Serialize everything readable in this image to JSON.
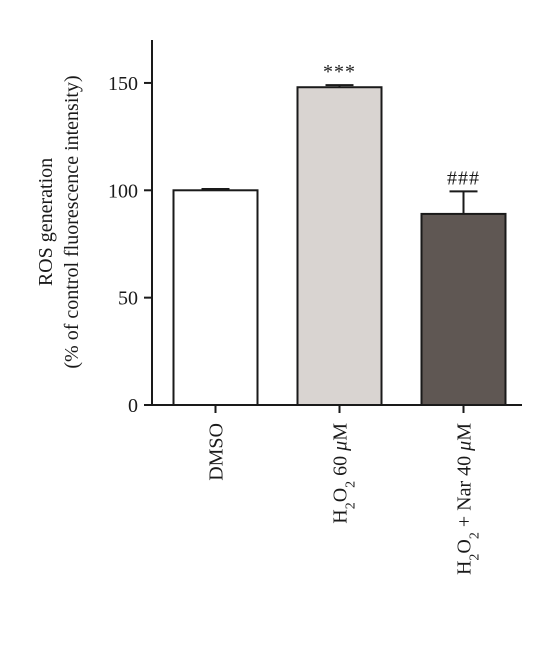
{
  "chart_data": {
    "type": "bar",
    "ylabel_lines": [
      "ROS generation",
      "(% of control fluorescence intensity)"
    ],
    "xlabel": "",
    "ylim": [
      0,
      170
    ],
    "yticks": [
      0,
      50,
      100,
      150
    ],
    "grid": false,
    "categories": [
      "DMSO",
      "H2O2 60 μM",
      "H2O2 + Nar 40 μM"
    ],
    "category_labels": [
      {
        "parts": [
          {
            "text": "DMSO"
          }
        ]
      },
      {
        "parts": [
          {
            "text": "H"
          },
          {
            "text": "2",
            "sub": true
          },
          {
            "text": "O"
          },
          {
            "text": "2",
            "sub": true
          },
          {
            "text": " 60 "
          },
          {
            "text": "μ",
            "italic": true
          },
          {
            "text": "M"
          }
        ]
      },
      {
        "parts": [
          {
            "text": "H"
          },
          {
            "text": "2",
            "sub": true
          },
          {
            "text": "O"
          },
          {
            "text": "2",
            "sub": true
          },
          {
            "text": " + Nar 40 "
          },
          {
            "text": "μ",
            "italic": true
          },
          {
            "text": "M"
          }
        ]
      }
    ],
    "values": [
      100,
      148,
      89
    ],
    "errors": [
      0.6,
      1,
      10.5
    ],
    "annotations": [
      "",
      "***",
      "###"
    ],
    "bar_fill": [
      "#ffffff",
      "#d9d4d1",
      "#5f5753"
    ],
    "bar_stroke": "#1a1a1a"
  }
}
